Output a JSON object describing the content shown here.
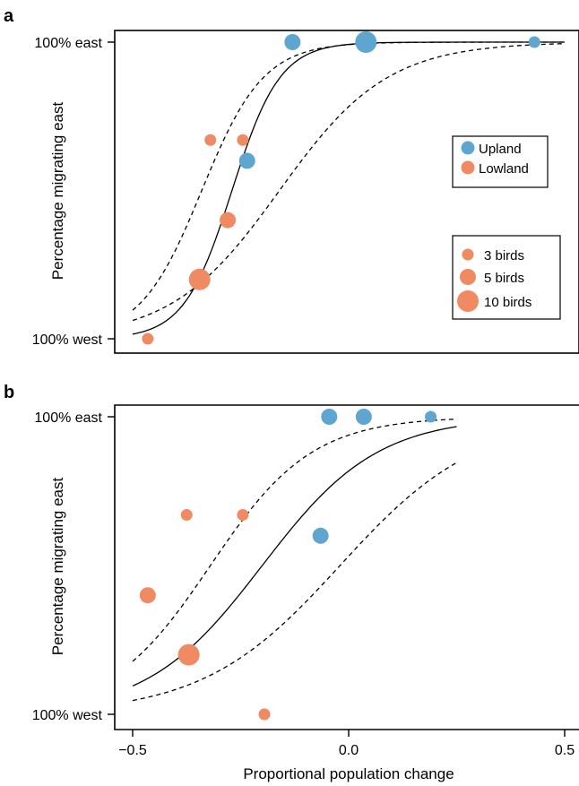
{
  "chart_data": [
    {
      "panel": "a",
      "type": "scatter",
      "title": "",
      "xlabel": "",
      "ylabel": "Percentage migrating east",
      "xlim": [
        -0.5,
        0.5
      ],
      "ylim": [
        0,
        100
      ],
      "y_tick_labels": [
        {
          "value": 100,
          "label": "100% east"
        },
        {
          "value": 0,
          "label": "100% west"
        }
      ],
      "series": [
        {
          "name": "Upland",
          "color": "#5ea6d0",
          "points": [
            {
              "x": -0.13,
              "y": 100,
              "n": 5
            },
            {
              "x": 0.04,
              "y": 100,
              "n": 10
            },
            {
              "x": 0.43,
              "y": 100,
              "n": 3
            },
            {
              "x": -0.235,
              "y": 60,
              "n": 5
            }
          ]
        },
        {
          "name": "Lowland",
          "color": "#ef8a62",
          "points": [
            {
              "x": -0.32,
              "y": 67,
              "n": 3
            },
            {
              "x": -0.245,
              "y": 67,
              "n": 3
            },
            {
              "x": -0.28,
              "y": 40,
              "n": 5
            },
            {
              "x": -0.345,
              "y": 20,
              "n": 10
            },
            {
              "x": -0.465,
              "y": 0,
              "n": 3
            }
          ]
        }
      ],
      "fit_curve": {
        "x0": -0.27,
        "k": 18,
        "from": -0.5,
        "to": 0.5
      },
      "ci_upper": {
        "x0": -0.34,
        "k": 14,
        "from": -0.5,
        "to": 0.5
      },
      "ci_lower": {
        "x0": -0.16,
        "k": 8,
        "from": -0.5,
        "to": 0.5
      },
      "legend_groups": {
        "labels": [
          "Upland",
          "Lowland"
        ],
        "colors": [
          "#5ea6d0",
          "#ef8a62"
        ],
        "position": "right"
      },
      "legend_sizes": {
        "labels": [
          "3 birds",
          "5 birds",
          "10 birds"
        ],
        "sizes": [
          3,
          5,
          10
        ],
        "position": "bottom-right"
      }
    },
    {
      "panel": "b",
      "type": "scatter",
      "title": "",
      "xlabel": "Proportional population change",
      "ylabel": "Percentage migrating east",
      "xlim": [
        -0.5,
        0.5
      ],
      "ylim": [
        0,
        100
      ],
      "x_ticks": [
        -0.5,
        0.0,
        0.5
      ],
      "x_tick_labels": [
        "−0.5",
        "0.0",
        "0.5"
      ],
      "y_tick_labels": [
        {
          "value": 100,
          "label": "100% east"
        },
        {
          "value": 0,
          "label": "100% west"
        }
      ],
      "series": [
        {
          "name": "Upland",
          "color": "#5ea6d0",
          "points": [
            {
              "x": -0.045,
              "y": 100,
              "n": 5
            },
            {
              "x": 0.035,
              "y": 100,
              "n": 5
            },
            {
              "x": 0.19,
              "y": 100,
              "n": 3
            },
            {
              "x": -0.065,
              "y": 60,
              "n": 5
            }
          ]
        },
        {
          "name": "Lowland",
          "color": "#ef8a62",
          "points": [
            {
              "x": -0.375,
              "y": 67,
              "n": 3
            },
            {
              "x": -0.245,
              "y": 67,
              "n": 3
            },
            {
              "x": -0.465,
              "y": 40,
              "n": 5
            },
            {
              "x": -0.37,
              "y": 20,
              "n": 10
            },
            {
              "x": -0.195,
              "y": 0,
              "n": 3
            }
          ]
        }
      ],
      "fit_curve": {
        "x0": -0.2,
        "k": 7.5,
        "from": -0.5,
        "to": 0.25
      },
      "ci_upper": {
        "x0": -0.32,
        "k": 8.5,
        "from": -0.5,
        "to": 0.25
      },
      "ci_lower": {
        "x0": -0.02,
        "k": 6.3,
        "from": -0.5,
        "to": 0.25
      }
    }
  ]
}
